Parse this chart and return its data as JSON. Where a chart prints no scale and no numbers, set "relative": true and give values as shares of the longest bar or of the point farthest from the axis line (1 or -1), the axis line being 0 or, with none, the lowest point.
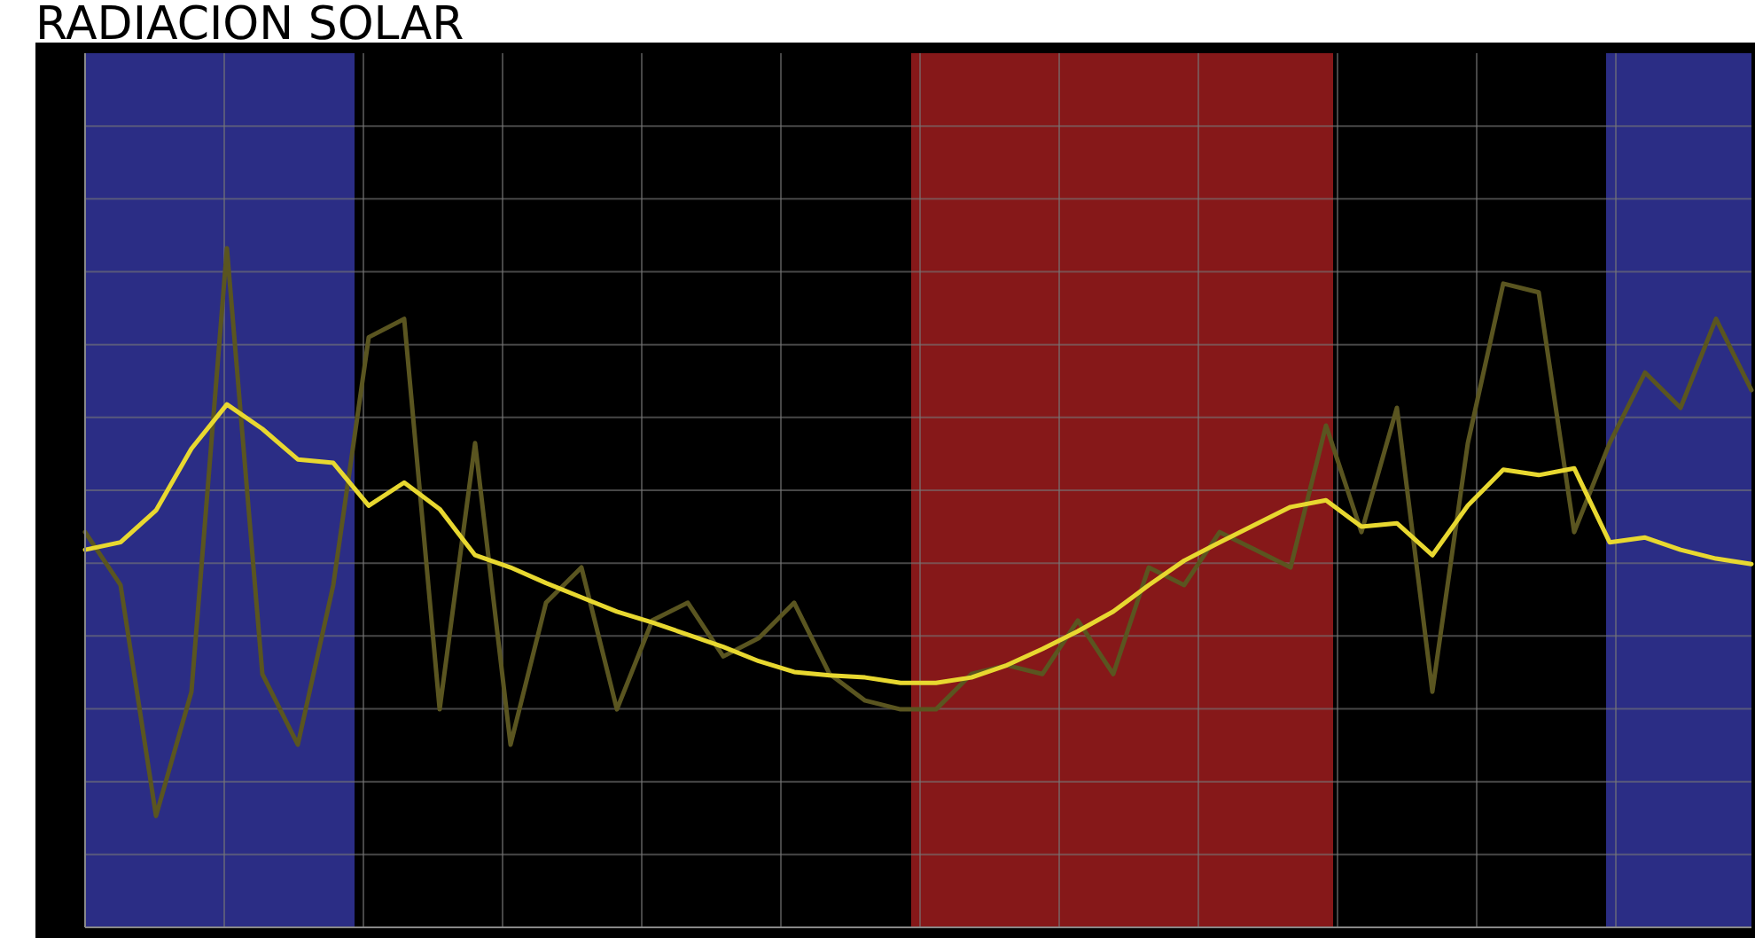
{
  "chart_data": {
    "type": "line",
    "title": "RADIACION SOLAR",
    "relative": true,
    "grid": true,
    "categories": [
      null,
      null,
      null,
      null,
      null,
      null,
      null,
      null,
      null,
      null,
      null,
      null,
      null,
      null,
      null,
      null,
      null,
      null,
      null,
      null,
      null,
      null,
      null,
      null,
      null,
      null,
      null,
      null,
      null,
      null,
      null,
      null,
      null,
      null,
      null,
      null,
      null,
      null,
      null,
      null,
      null,
      null,
      null,
      null,
      null,
      null,
      null,
      null
    ],
    "series": [
      {
        "color": "#5a5520",
        "values": [
          0.582,
          0.504,
          0.164,
          0.347,
          1,
          0.373,
          0.269,
          0.504,
          0.869,
          0.896,
          0.321,
          0.713,
          0.269,
          0.478,
          0.53,
          0.321,
          0.452,
          0.478,
          0.399,
          0.426,
          0.478,
          0.373,
          0.334,
          0.321,
          0.321,
          0.373,
          0.386,
          0.373,
          0.452,
          0.373,
          0.53,
          0.504,
          0.582,
          0.556,
          0.53,
          0.739,
          0.582,
          0.765,
          0.347,
          0.713,
          0.948,
          0.935,
          0.582,
          0.713,
          0.817,
          0.765,
          0.896,
          0.791
        ]
      },
      {
        "color": "#e8d830",
        "values": [
          0.556,
          0.567,
          0.614,
          0.705,
          0.77,
          0.734,
          0.689,
          0.684,
          0.621,
          0.655,
          0.616,
          0.548,
          0.53,
          0.507,
          0.486,
          0.465,
          0.449,
          0.431,
          0.413,
          0.392,
          0.376,
          0.371,
          0.368,
          0.36,
          0.36,
          0.368,
          0.386,
          0.41,
          0.436,
          0.465,
          0.504,
          0.54,
          0.567,
          0.593,
          0.619,
          0.629,
          0.59,
          0.595,
          0.548,
          0.621,
          0.674,
          0.666,
          0.676,
          0.567,
          0.574,
          0.556,
          0.543,
          0.535
        ]
      }
    ]
  }
}
